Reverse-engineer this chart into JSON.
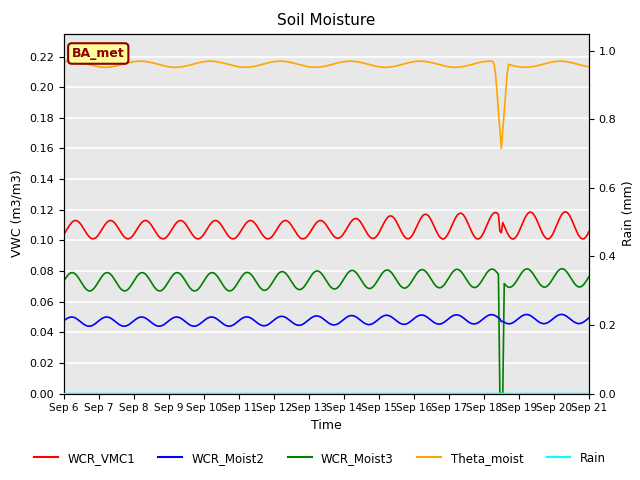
{
  "title": "Soil Moisture",
  "ylabel_left": "VWC (m3/m3)",
  "ylabel_right": "Rain (mm)",
  "xlabel": "Time",
  "annotation_text": "BA_met",
  "annotation_color": "#8B0000",
  "annotation_bg": "#FFFF99",
  "ylim_left": [
    0.0,
    0.235
  ],
  "ylim_right": [
    0.0,
    1.05
  ],
  "date_labels": [
    "Sep 6",
    "Sep 7",
    "Sep 8",
    "Sep 9",
    "Sep 10",
    "Sep 11",
    "Sep 12",
    "Sep 13",
    "Sep 14",
    "Sep 15",
    "Sep 16",
    "Sep 17",
    "Sep 18",
    "Sep 19",
    "Sep 20",
    "Sep 21"
  ],
  "colors": {
    "WCR_VMC1": "red",
    "WCR_Moist2": "blue",
    "WCR_Moist3": "green",
    "Theta_moist": "orange",
    "Rain": "cyan"
  },
  "bg_color": "#e8e8e8",
  "grid_color": "white",
  "yticks_left": [
    0.0,
    0.02,
    0.04,
    0.06,
    0.08,
    0.1,
    0.12,
    0.14,
    0.16,
    0.18,
    0.2,
    0.22
  ],
  "yticks_right": [
    0.0,
    0.2,
    0.4,
    0.6,
    0.8,
    1.0
  ]
}
